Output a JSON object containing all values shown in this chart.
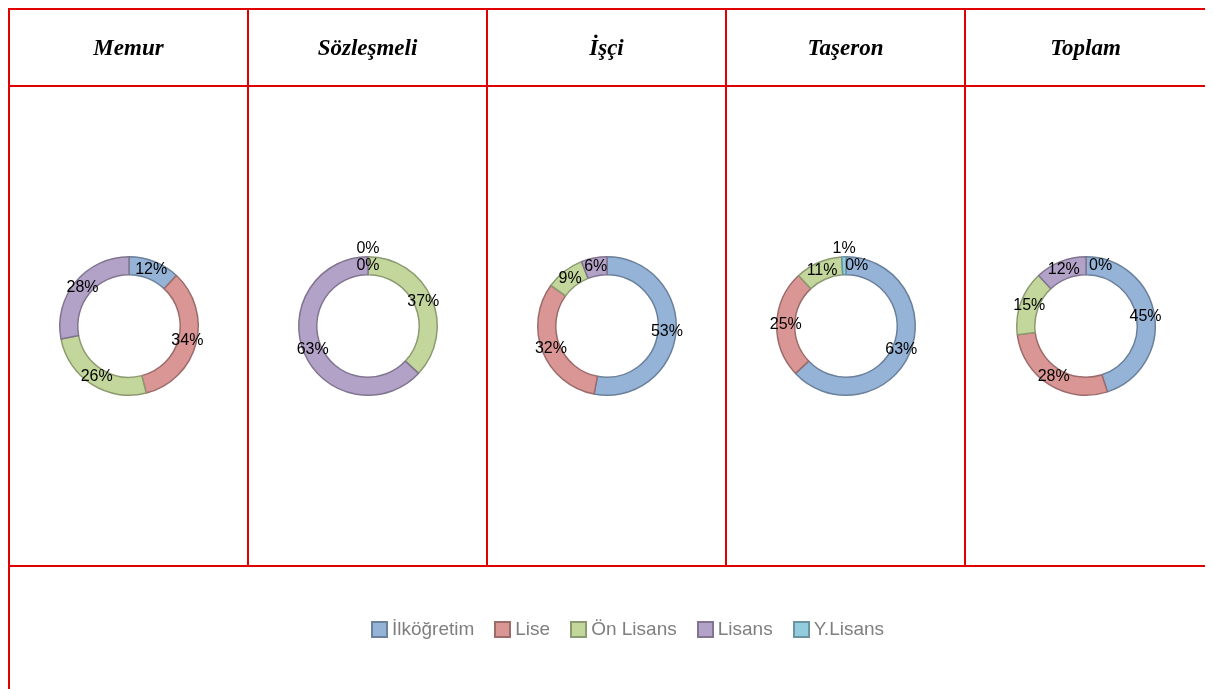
{
  "chart_data": [
    {
      "type": "donut",
      "title": "Memur",
      "categories": [
        "İlköğretim",
        "Lise",
        "Ön Lisans",
        "Lisans",
        "Y.Lisans"
      ],
      "values": [
        12,
        34,
        26,
        28,
        0
      ],
      "value_labels": [
        "12%",
        "34%",
        "26%",
        "28%",
        null
      ],
      "colors": [
        "#95b3d7",
        "#d99694",
        "#c3d69b",
        "#b3a2c7",
        "#93cddd"
      ],
      "legend": "bottom"
    },
    {
      "type": "donut",
      "title": "Sözleşmeli",
      "categories": [
        null,
        null,
        null,
        null,
        null
      ],
      "values": [
        0,
        0,
        37,
        63,
        0
      ],
      "value_labels": [
        "0%",
        "0%",
        "37%",
        "63%",
        null
      ],
      "colors": [
        "#95b3d7",
        "#d99694",
        "#c3d69b",
        "#b3a2c7",
        "#93cddd"
      ]
    },
    {
      "type": "donut",
      "title": "İşçi",
      "categories": [
        null,
        null,
        null,
        null,
        null
      ],
      "values": [
        53,
        32,
        9,
        6,
        0
      ],
      "value_labels": [
        "53%",
        "32%",
        "9%",
        "6%",
        null
      ],
      "colors": [
        "#95b3d7",
        "#d99694",
        "#c3d69b",
        "#b3a2c7",
        "#93cddd"
      ]
    },
    {
      "type": "donut",
      "title": "Taşeron",
      "categories": [
        null,
        null,
        null,
        null,
        null
      ],
      "values": [
        63,
        25,
        11,
        0,
        1
      ],
      "value_labels": [
        "63%",
        "25%",
        "11%",
        "0%",
        "1%"
      ],
      "colors": [
        "#95b3d7",
        "#d99694",
        "#c3d69b",
        "#b3a2c7",
        "#93cddd"
      ]
    },
    {
      "type": "donut",
      "title": "Toplam",
      "categories": [
        null,
        null,
        null,
        null,
        null
      ],
      "values": [
        45,
        28,
        15,
        12,
        0
      ],
      "value_labels": [
        "45%",
        "28%",
        "15%",
        "12%",
        "0%"
      ],
      "colors": [
        "#95b3d7",
        "#d99694",
        "#c3d69b",
        "#b3a2c7",
        "#93cddd"
      ]
    }
  ]
}
